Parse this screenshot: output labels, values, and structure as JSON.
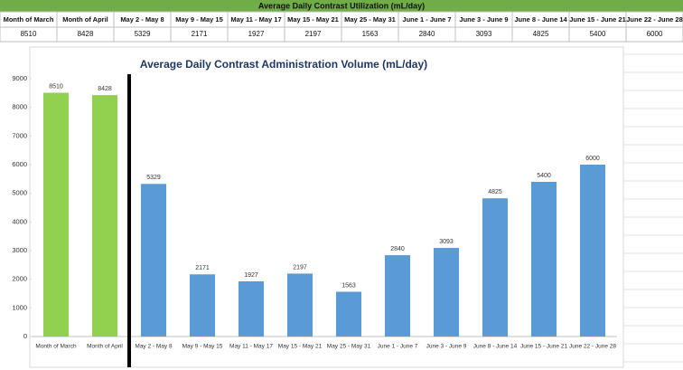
{
  "table": {
    "title": "Average Daily Contrast Utilization (mL/day)",
    "headers": [
      "Month of March",
      "Month of April",
      "May 2 - May 8",
      "May 9 - May 15",
      "May 11 - May 17",
      "May 15 - May 21",
      "May 25 - May 31",
      "June 1 - June 7",
      "June 3 - June 9",
      "June 8 - June 14",
      "June 15 - June 21",
      "June 22 - June 28"
    ],
    "values": [
      "8510",
      "8428",
      "5329",
      "2171",
      "1927",
      "2197",
      "1563",
      "2840",
      "3093",
      "4825",
      "5400",
      "6000"
    ]
  },
  "chart_data": {
    "type": "bar",
    "title": "Average Daily Contrast Administration Volume (mL/day)",
    "categories": [
      "Month of March",
      "Month of April",
      "May 2 - May 8",
      "May 9 - May 15",
      "May 11 - May 17",
      "May 15 - May 21",
      "May 25 - May 31",
      "June 1 - June 7",
      "June 3 - June 9",
      "June 8 - June 14",
      "June 15 - June 21",
      "June 22 - June 28"
    ],
    "values": [
      8510,
      8428,
      5329,
      2171,
      1927,
      2197,
      1563,
      2840,
      3093,
      4825,
      5400,
      6000
    ],
    "colors": [
      "#92d050",
      "#92d050",
      "#5b9bd5",
      "#5b9bd5",
      "#5b9bd5",
      "#5b9bd5",
      "#5b9bd5",
      "#5b9bd5",
      "#5b9bd5",
      "#5b9bd5",
      "#5b9bd5",
      "#5b9bd5"
    ],
    "ylim": [
      0,
      9000
    ],
    "yticks": [
      0,
      1000,
      2000,
      3000,
      4000,
      5000,
      6000,
      7000,
      8000,
      9000
    ],
    "grid": false
  }
}
